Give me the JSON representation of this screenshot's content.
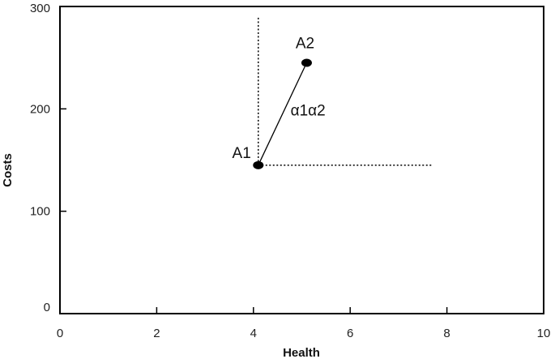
{
  "chart_data": {
    "type": "scatter",
    "xlabel": "Health",
    "ylabel": "Costs",
    "xlim": [
      0,
      10
    ],
    "ylim": [
      0,
      300
    ],
    "xticks": [
      0,
      2,
      4,
      6,
      8,
      10
    ],
    "yticks": [
      0,
      100,
      200,
      300
    ],
    "grid": false,
    "points": [
      {
        "label": "A1",
        "x": 4.1,
        "y": 145
      },
      {
        "label": "A2",
        "x": 5.1,
        "y": 245
      }
    ],
    "segments": [
      {
        "label": "α1α2",
        "from": [
          4.1,
          145
        ],
        "to": [
          5.1,
          245
        ],
        "style": "solid"
      }
    ],
    "reference_lines": [
      {
        "orientation": "vertical",
        "x": 4.1,
        "y_from": 145,
        "y_to": 290,
        "style": "dotted"
      },
      {
        "orientation": "horizontal",
        "y": 145,
        "x_from": 4.1,
        "x_to": 7.7,
        "style": "dotted"
      }
    ]
  }
}
